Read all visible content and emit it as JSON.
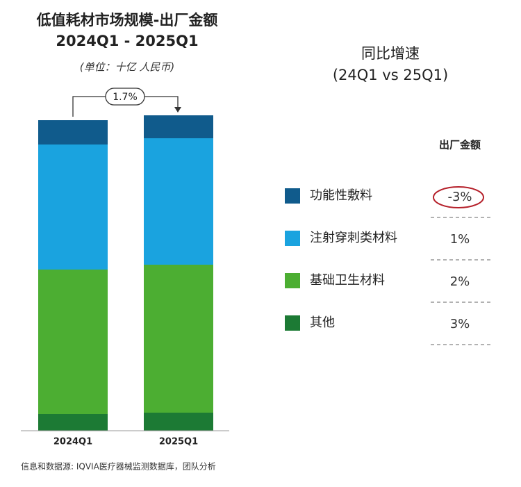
{
  "chart_data": {
    "type": "stacked_bar",
    "title": "低值耗材市场规模-出厂金额",
    "title_line2": "2024Q1 - 2025Q1",
    "subtitle": "(单位：十亿 人民币)",
    "categories": [
      "2024Q1",
      "2025Q1"
    ],
    "series": [
      {
        "name": "其他",
        "color": "#1c7a34",
        "values": [
          24,
          26
        ]
      },
      {
        "name": "基础卫生材料",
        "color": "#4cae32",
        "values": [
          208,
          213
        ]
      },
      {
        "name": "注射穿刺类材料",
        "color": "#1aa3df",
        "values": [
          180,
          182
        ]
      },
      {
        "name": "功能性敷料",
        "color": "#105b8c",
        "values": [
          35,
          33
        ]
      }
    ],
    "annotation": {
      "value": 1.7,
      "label": "1.7%"
    },
    "growth": {
      "title": "同比增速",
      "subtitle": "(24Q1 vs 25Q1)",
      "column": "出厂金额",
      "values": [
        -3,
        1,
        2,
        3
      ],
      "value_labels": [
        "-3%",
        "1%",
        "2%",
        "3%"
      ]
    },
    "source": "信息和数据源: IQVIA医疗器械监测数据库，团队分析"
  }
}
